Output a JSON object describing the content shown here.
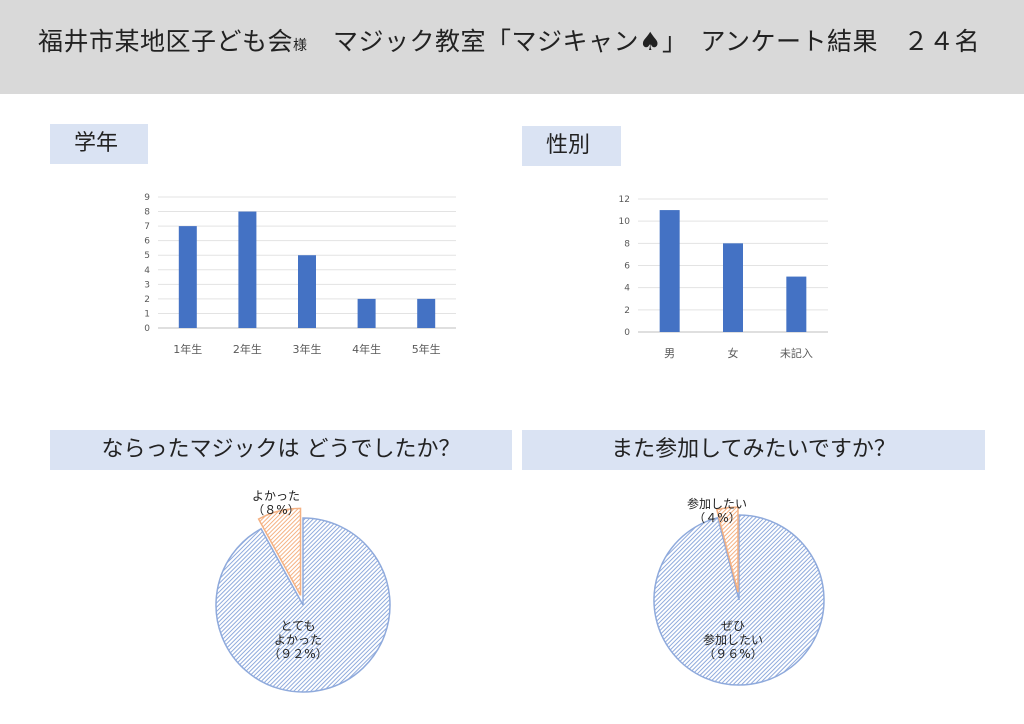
{
  "header": {
    "title_main": "福井市某地区子ども会",
    "title_suffix": "様",
    "title_rest": "マジック教室「マジキャン♠」　アンケート結果　２４名"
  },
  "sections": {
    "grade": "学年",
    "gender": "性別",
    "q1": "ならったマジックは どうでしたか？",
    "q2": "また参加してみたいですか？"
  },
  "colors": {
    "bar": "#4472c4",
    "pie_main": "#8faadc",
    "pie_minor": "#f4b183",
    "section_bg": "#dae3f3",
    "header_bg": "#d9d9d9"
  },
  "chart_data": [
    {
      "type": "bar",
      "categories": [
        "1年生",
        "2年生",
        "3年生",
        "4年生",
        "5年生"
      ],
      "values": [
        7,
        8,
        5,
        2,
        2
      ],
      "ylim": [
        0,
        9
      ],
      "yticks": [
        "0",
        "1",
        "2",
        "3",
        "4",
        "5",
        "6",
        "7",
        "8",
        "9"
      ],
      "grid": true
    },
    {
      "type": "bar",
      "categories": [
        "男",
        "女",
        "未記入"
      ],
      "values": [
        11,
        8,
        5
      ],
      "ylim": [
        0,
        12
      ],
      "yticks": [
        "0",
        "2",
        "4",
        "6",
        "8",
        "10",
        "12"
      ],
      "grid": true
    },
    {
      "type": "pie",
      "slices": [
        {
          "label_lines": [
            "とても",
            "よかった",
            "（９２%）"
          ],
          "value": 92
        },
        {
          "label_lines": [
            "よかった",
            "（８%）"
          ],
          "value": 8
        }
      ]
    },
    {
      "type": "pie",
      "slices": [
        {
          "label_lines": [
            "ぜひ",
            "参加したい",
            "（９６%）"
          ],
          "value": 96
        },
        {
          "label_lines": [
            "参加したい",
            "（４%）"
          ],
          "value": 4
        }
      ]
    }
  ]
}
